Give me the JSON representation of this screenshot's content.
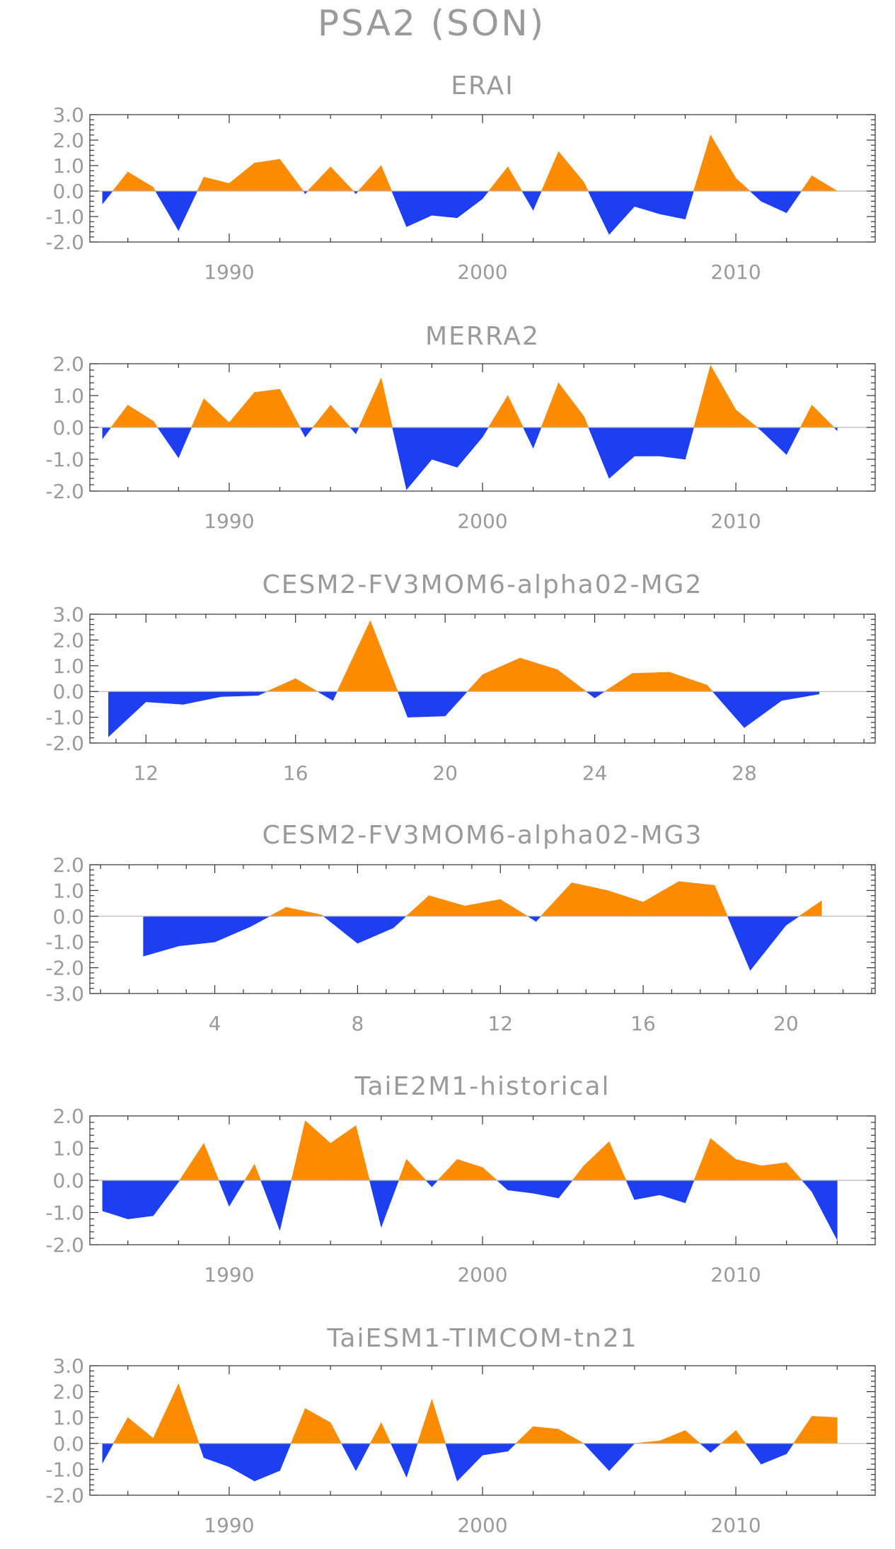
{
  "title": "PSA2 (SON)",
  "colors": {
    "positive": "#ff8c00",
    "negative": "#1e3ff0",
    "text": "#9a9a9a",
    "frame": "#333333"
  },
  "chart_data": [
    {
      "type": "area",
      "title": "ERAI",
      "ylim": [
        -2.0,
        3.0
      ],
      "yticks": [
        -2.0,
        -1.0,
        0.0,
        1.0,
        2.0,
        3.0
      ],
      "ytick_labels": [
        "-2.0",
        "-1.0",
        "0.0",
        "1.0",
        "2.0",
        "3.0"
      ],
      "xlim": [
        1984.5,
        2015.5
      ],
      "xticks": [
        1990,
        2000,
        2010
      ],
      "xtick_labels": [
        "1990",
        "2000",
        "2010"
      ],
      "x": [
        1985,
        1986,
        1987,
        1988,
        1989,
        1990,
        1991,
        1992,
        1993,
        1994,
        1995,
        1996,
        1997,
        1998,
        1999,
        2000,
        2001,
        2002,
        2003,
        2004,
        2005,
        2006,
        2007,
        2008,
        2009,
        2010,
        2011,
        2012,
        2013,
        2014
      ],
      "values": [
        -0.5,
        0.75,
        0.15,
        -1.55,
        0.55,
        0.3,
        1.1,
        1.25,
        -0.1,
        0.95,
        -0.1,
        1.0,
        -1.4,
        -0.95,
        -1.05,
        -0.3,
        0.95,
        -0.75,
        1.55,
        0.35,
        -1.7,
        -0.6,
        -0.9,
        -1.1,
        2.2,
        0.5,
        -0.4,
        -0.85,
        0.6,
        0.0
      ]
    },
    {
      "type": "area",
      "title": "MERRA2",
      "ylim": [
        -2.0,
        2.0
      ],
      "yticks": [
        -2.0,
        -1.0,
        0.0,
        1.0,
        2.0
      ],
      "ytick_labels": [
        "-2.0",
        "-1.0",
        "0.0",
        "1.0",
        "2.0"
      ],
      "xlim": [
        1984.5,
        2015.5
      ],
      "xticks": [
        1990,
        2000,
        2010
      ],
      "xtick_labels": [
        "1990",
        "2000",
        "2010"
      ],
      "x": [
        1985,
        1986,
        1987,
        1988,
        1989,
        1990,
        1991,
        1992,
        1993,
        1994,
        1995,
        1996,
        1997,
        1998,
        1999,
        2000,
        2001,
        2002,
        2003,
        2004,
        2005,
        2006,
        2007,
        2008,
        2009,
        2010,
        2011,
        2012,
        2013,
        2014
      ],
      "values": [
        -0.35,
        0.7,
        0.2,
        -0.95,
        0.9,
        0.15,
        1.1,
        1.2,
        -0.3,
        0.7,
        -0.2,
        1.55,
        -1.95,
        -1.0,
        -1.25,
        -0.3,
        1.0,
        -0.65,
        1.4,
        0.35,
        -1.6,
        -0.9,
        -0.9,
        -1.0,
        1.95,
        0.55,
        -0.1,
        -0.85,
        0.7,
        -0.1
      ]
    },
    {
      "type": "area",
      "title": "CESM2-FV3MOM6-alpha02-MG2",
      "ylim": [
        -2.0,
        3.0
      ],
      "yticks": [
        -2.0,
        -1.0,
        0.0,
        1.0,
        2.0,
        3.0
      ],
      "ytick_labels": [
        "-2.0",
        "-1.0",
        "0.0",
        "1.0",
        "2.0",
        "3.0"
      ],
      "xlim": [
        10.5,
        31.5
      ],
      "xticks": [
        12,
        16,
        20,
        24,
        28
      ],
      "xtick_labels": [
        "12",
        "16",
        "20",
        "24",
        "28"
      ],
      "x": [
        11,
        12,
        13,
        14,
        15,
        16,
        17,
        18,
        19,
        20,
        21,
        22,
        23,
        24,
        25,
        26,
        27,
        28,
        29,
        30
      ],
      "values": [
        -1.75,
        -0.4,
        -0.5,
        -0.2,
        -0.15,
        0.5,
        -0.35,
        2.75,
        -1.0,
        -0.95,
        0.65,
        1.3,
        0.85,
        -0.25,
        0.7,
        0.75,
        0.25,
        -1.4,
        -0.35,
        -0.1
      ]
    },
    {
      "type": "area",
      "title": "CESM2-FV3MOM6-alpha02-MG3",
      "ylim": [
        -3.0,
        2.0
      ],
      "yticks": [
        -3.0,
        -2.0,
        -1.0,
        0.0,
        1.0,
        2.0
      ],
      "ytick_labels": [
        "-3.0",
        "-2.0",
        "-1.0",
        "0.0",
        "1.0",
        "2.0"
      ],
      "xlim": [
        0.5,
        22.5
      ],
      "xticks": [
        4,
        8,
        12,
        16,
        20
      ],
      "xtick_labels": [
        "4",
        "8",
        "12",
        "16",
        "20"
      ],
      "x": [
        2,
        3,
        4,
        5,
        6,
        7,
        8,
        9,
        10,
        11,
        12,
        13,
        14,
        15,
        16,
        17,
        18,
        19,
        20,
        21
      ],
      "values": [
        -1.55,
        -1.15,
        -1.0,
        -0.4,
        0.35,
        0.05,
        -1.05,
        -0.45,
        0.8,
        0.4,
        0.65,
        -0.2,
        1.3,
        1.0,
        0.55,
        1.35,
        1.2,
        -2.1,
        -0.35,
        0.6
      ]
    },
    {
      "type": "area",
      "title": "TaiE2M1-historical",
      "ylim": [
        -2.0,
        2.0
      ],
      "yticks": [
        -2.0,
        -1.0,
        0.0,
        1.0,
        2.0
      ],
      "ytick_labels": [
        "-2.0",
        "-1.0",
        "0.0",
        "1.0",
        "2.0"
      ],
      "xlim": [
        1984.5,
        2015.5
      ],
      "xticks": [
        1990,
        2000,
        2010
      ],
      "xtick_labels": [
        "1990",
        "2000",
        "2010"
      ],
      "x": [
        1985,
        1986,
        1987,
        1988,
        1989,
        1990,
        1991,
        1992,
        1993,
        1994,
        1995,
        1996,
        1997,
        1998,
        1999,
        2000,
        2001,
        2002,
        2003,
        2004,
        2005,
        2006,
        2007,
        2008,
        2009,
        2010,
        2011,
        2012,
        2013,
        2014
      ],
      "values": [
        -0.95,
        -1.2,
        -1.1,
        -0.05,
        1.15,
        -0.8,
        0.5,
        -1.55,
        1.85,
        1.15,
        1.7,
        -1.45,
        0.65,
        -0.2,
        0.65,
        0.4,
        -0.3,
        -0.4,
        -0.55,
        0.45,
        1.2,
        -0.6,
        -0.45,
        -0.7,
        1.3,
        0.65,
        0.45,
        0.55,
        -0.35,
        -1.85
      ]
    },
    {
      "type": "area",
      "title": "TaiESM1-TIMCOM-tn21",
      "ylim": [
        -2.0,
        3.0
      ],
      "yticks": [
        -2.0,
        -1.0,
        0.0,
        1.0,
        2.0,
        3.0
      ],
      "ytick_labels": [
        "-2.0",
        "-1.0",
        "0.0",
        "1.0",
        "2.0",
        "3.0"
      ],
      "xlim": [
        1984.5,
        2015.5
      ],
      "xticks": [
        1990,
        2000,
        2010
      ],
      "xtick_labels": [
        "1990",
        "2000",
        "2010"
      ],
      "x": [
        1985,
        1986,
        1987,
        1988,
        1989,
        1990,
        1991,
        1992,
        1993,
        1994,
        1995,
        1996,
        1997,
        1998,
        1999,
        2000,
        2001,
        2002,
        2003,
        2004,
        2005,
        2006,
        2007,
        2008,
        2009,
        2010,
        2011,
        2012,
        2013,
        2014
      ],
      "values": [
        -0.75,
        1.0,
        0.2,
        2.3,
        -0.55,
        -0.9,
        -1.45,
        -1.05,
        1.35,
        0.8,
        -1.05,
        0.8,
        -1.3,
        1.7,
        -1.45,
        -0.45,
        -0.3,
        0.65,
        0.55,
        0.0,
        -1.05,
        0.0,
        0.1,
        0.5,
        -0.35,
        0.5,
        -0.8,
        -0.4,
        1.05,
        1.0
      ]
    }
  ]
}
